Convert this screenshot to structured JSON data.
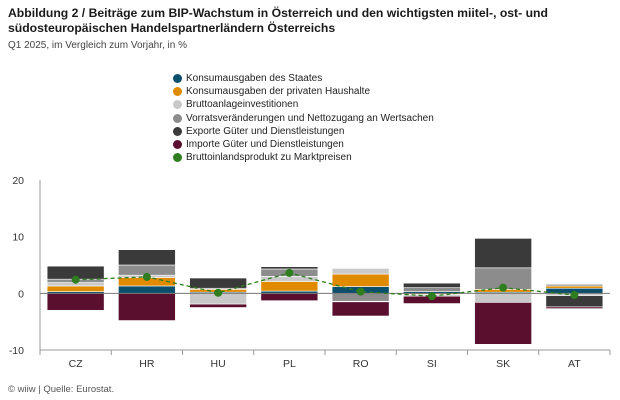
{
  "header": {
    "title": "Abbildung 2 / Beiträge zum BIP-Wachstum in Österreich und den wichtigsten miitel-, ost- und südosteuropäischen Handelspartnerländern Österreichs",
    "subtitle": "Q1 2025, im Vergleich zum Vorjahr, in %"
  },
  "footer": {
    "source": "© wiiw | Quelle: Eurostat."
  },
  "chart_data": {
    "type": "bar",
    "stacked": true,
    "title": "Abbildung 2 / Beiträge zum BIP-Wachstum in Österreich und den wichtigsten miitel-, ost- und südosteuropäischen Handelspartnerländern Österreichs",
    "subtitle": "Q1 2025, im Vergleich zum Vorjahr, in %",
    "xlabel": "",
    "ylabel": "",
    "ylim": [
      -10,
      20
    ],
    "yticks": [
      -10,
      0,
      10,
      20
    ],
    "grid": false,
    "legend_position": "top",
    "categories": [
      "CZ",
      "HR",
      "HU",
      "PL",
      "RO",
      "SI",
      "SK",
      "AT"
    ],
    "series": [
      {
        "name": "Konsumausgaben des Staates",
        "color": "#0b4f6c",
        "values": [
          0.3,
          1.3,
          0.2,
          0.4,
          1.2,
          0.3,
          0.2,
          0.9
        ]
      },
      {
        "name": "Konsumausgaben der privaten Haushalte",
        "color": "#e08a00",
        "values": [
          1.0,
          1.5,
          0.5,
          1.7,
          2.2,
          -0.2,
          0.5,
          0.4
        ]
      },
      {
        "name": "Bruttoanlageinvestitionen",
        "color": "#c9c9c9",
        "values": [
          0.6,
          0.4,
          -1.9,
          0.9,
          1.0,
          -0.3,
          -1.6,
          -0.4
        ]
      },
      {
        "name": "Vorratsveränderungen und Nettozugang an Wertsachen",
        "color": "#8c8c8c",
        "values": [
          0.6,
          1.8,
          0.2,
          1.3,
          -1.4,
          0.7,
          3.8,
          0.3
        ]
      },
      {
        "name": "Exporte Güter und Dienstleistungen",
        "color": "#3a3a3a",
        "values": [
          2.3,
          2.7,
          1.8,
          0.4,
          -0.1,
          0.8,
          5.2,
          -2.0
        ]
      },
      {
        "name": "Importe Güter und Dienstleistungen",
        "color": "#5a0f2e",
        "values": [
          -3.0,
          -4.8,
          -0.6,
          -1.3,
          -2.5,
          -1.3,
          -7.4,
          -0.3
        ]
      }
    ],
    "line": {
      "name": "Bruttoinlandsprodukt zu Marktpreisen",
      "color": "#2e7d1e",
      "values": [
        2.4,
        2.9,
        0.1,
        3.6,
        0.3,
        -0.5,
        1.0,
        -0.3
      ]
    }
  }
}
